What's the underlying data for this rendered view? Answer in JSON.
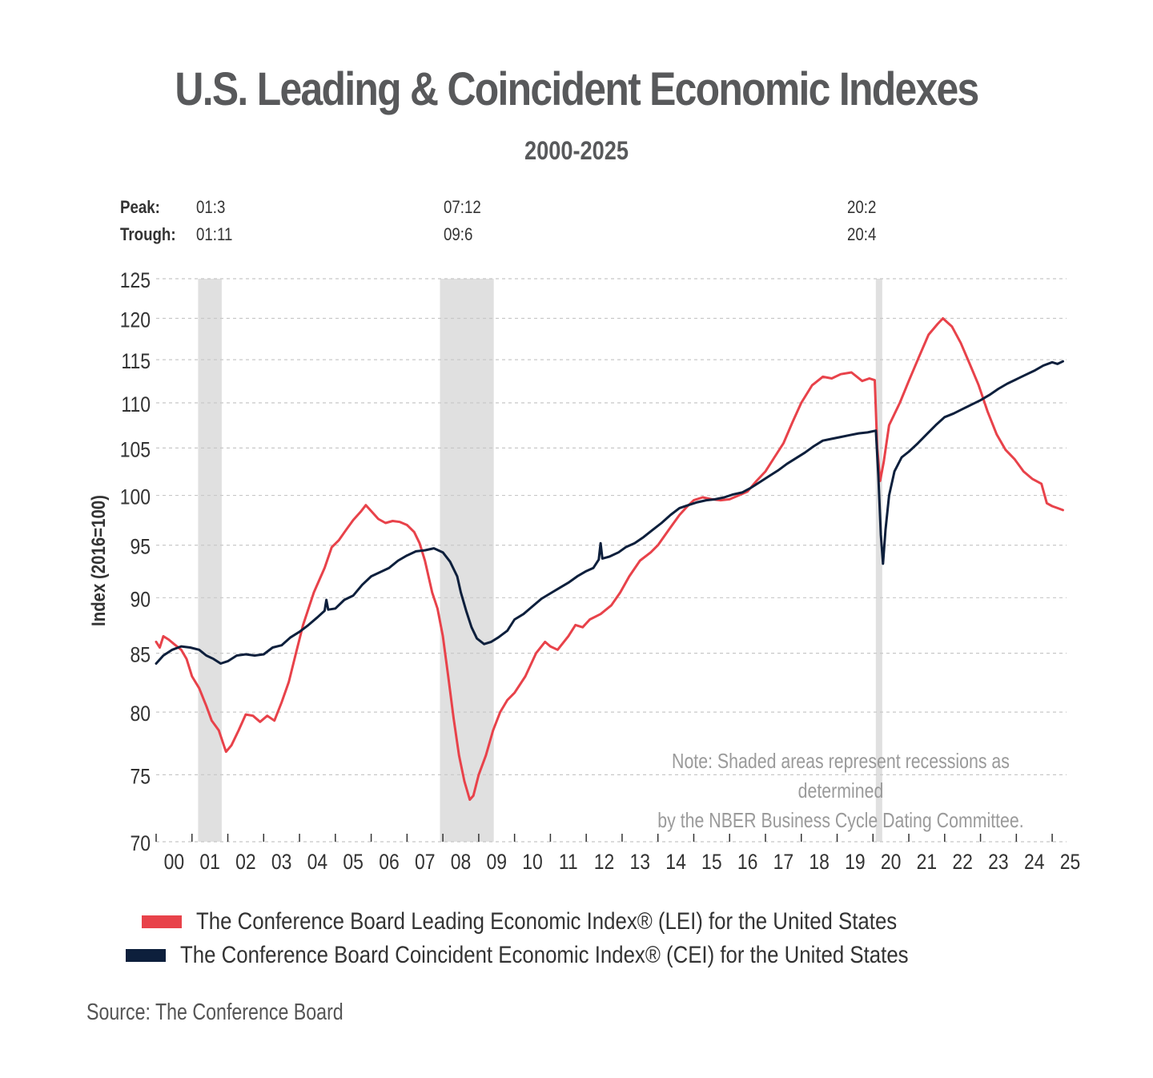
{
  "title": "U.S. Leading & Coincident Economic Indexes",
  "subtitle": "2000-2025",
  "cycles": {
    "peak_label": "Peak:",
    "trough_label": "Trough:",
    "recessions": [
      {
        "peak": "01:3",
        "trough": "01:11"
      },
      {
        "peak": "07:12",
        "trough": "09:6"
      },
      {
        "peak": "20:2",
        "trough": "20:4"
      }
    ]
  },
  "note_line1": "Note: Shaded areas represent recessions as determined",
  "note_line2": "by the NBER Business Cycle Dating Committee.",
  "source": "Source: The Conference Board",
  "colors": {
    "lei": "#e8424a",
    "cei": "#0d1f3c",
    "recession": "#e0e0e0",
    "grid": "#c8c8c8"
  },
  "chart_data": {
    "type": "line",
    "ylabel": "Index (2016=100)",
    "y_scale": "log",
    "ylim": [
      70,
      125
    ],
    "yticks": [
      70,
      75,
      80,
      85,
      90,
      95,
      100,
      105,
      110,
      115,
      120,
      125
    ],
    "xlim": [
      2000.0,
      2025.4
    ],
    "x_tick_labels": [
      "00",
      "01",
      "02",
      "03",
      "04",
      "05",
      "06",
      "07",
      "08",
      "09",
      "10",
      "11",
      "12",
      "13",
      "14",
      "15",
      "16",
      "17",
      "18",
      "19",
      "20",
      "21",
      "22",
      "23",
      "24",
      "25"
    ],
    "recession_shading": [
      [
        2001.17,
        2001.83
      ],
      [
        2007.92,
        2009.42
      ],
      [
        2020.08,
        2020.25
      ]
    ],
    "series": [
      {
        "name": "The Conference Board Leading Economic Index® (LEI) for the United States",
        "key": "lei",
        "points": [
          [
            2000.0,
            86.0
          ],
          [
            2000.1,
            85.5
          ],
          [
            2000.2,
            86.5
          ],
          [
            2000.35,
            86.2
          ],
          [
            2000.5,
            85.8
          ],
          [
            2000.7,
            85.3
          ],
          [
            2000.85,
            84.5
          ],
          [
            2001.0,
            83.0
          ],
          [
            2001.2,
            82.0
          ],
          [
            2001.4,
            80.5
          ],
          [
            2001.55,
            79.3
          ],
          [
            2001.75,
            78.5
          ],
          [
            2001.9,
            77.2
          ],
          [
            2001.95,
            76.8
          ],
          [
            2002.1,
            77.3
          ],
          [
            2002.3,
            78.5
          ],
          [
            2002.5,
            79.8
          ],
          [
            2002.7,
            79.7
          ],
          [
            2002.9,
            79.2
          ],
          [
            2003.1,
            79.7
          ],
          [
            2003.3,
            79.3
          ],
          [
            2003.5,
            80.8
          ],
          [
            2003.7,
            82.5
          ],
          [
            2003.9,
            85.0
          ],
          [
            2004.1,
            87.5
          ],
          [
            2004.4,
            90.5
          ],
          [
            2004.7,
            92.8
          ],
          [
            2004.9,
            94.8
          ],
          [
            2005.1,
            95.5
          ],
          [
            2005.3,
            96.5
          ],
          [
            2005.5,
            97.5
          ],
          [
            2005.7,
            98.3
          ],
          [
            2005.85,
            99.0
          ],
          [
            2006.0,
            98.4
          ],
          [
            2006.2,
            97.6
          ],
          [
            2006.4,
            97.2
          ],
          [
            2006.6,
            97.4
          ],
          [
            2006.8,
            97.3
          ],
          [
            2007.0,
            97.0
          ],
          [
            2007.2,
            96.3
          ],
          [
            2007.35,
            95.2
          ],
          [
            2007.5,
            93.5
          ],
          [
            2007.7,
            90.5
          ],
          [
            2007.85,
            89.0
          ],
          [
            2008.0,
            86.5
          ],
          [
            2008.15,
            83.0
          ],
          [
            2008.3,
            79.5
          ],
          [
            2008.45,
            76.5
          ],
          [
            2008.6,
            74.5
          ],
          [
            2008.75,
            73.1
          ],
          [
            2008.85,
            73.4
          ],
          [
            2009.0,
            75.0
          ],
          [
            2009.2,
            76.5
          ],
          [
            2009.4,
            78.5
          ],
          [
            2009.6,
            80.0
          ],
          [
            2009.8,
            81.0
          ],
          [
            2010.0,
            81.6
          ],
          [
            2010.3,
            83.0
          ],
          [
            2010.6,
            85.0
          ],
          [
            2010.85,
            86.0
          ],
          [
            2011.0,
            85.6
          ],
          [
            2011.2,
            85.3
          ],
          [
            2011.5,
            86.5
          ],
          [
            2011.7,
            87.5
          ],
          [
            2011.9,
            87.3
          ],
          [
            2012.1,
            88.0
          ],
          [
            2012.4,
            88.5
          ],
          [
            2012.7,
            89.3
          ],
          [
            2012.95,
            90.5
          ],
          [
            2013.2,
            92.0
          ],
          [
            2013.5,
            93.5
          ],
          [
            2013.8,
            94.3
          ],
          [
            2014.0,
            95.0
          ],
          [
            2014.3,
            96.5
          ],
          [
            2014.6,
            98.0
          ],
          [
            2014.8,
            98.8
          ],
          [
            2015.0,
            99.5
          ],
          [
            2015.25,
            99.8
          ],
          [
            2015.5,
            99.6
          ],
          [
            2015.75,
            99.5
          ],
          [
            2016.0,
            99.6
          ],
          [
            2016.25,
            100.0
          ],
          [
            2016.5,
            100.4
          ],
          [
            2016.75,
            101.5
          ],
          [
            2017.0,
            102.5
          ],
          [
            2017.25,
            104.0
          ],
          [
            2017.5,
            105.5
          ],
          [
            2017.75,
            107.8
          ],
          [
            2018.0,
            110.0
          ],
          [
            2018.3,
            112.0
          ],
          [
            2018.6,
            113.0
          ],
          [
            2018.85,
            112.8
          ],
          [
            2019.1,
            113.3
          ],
          [
            2019.4,
            113.5
          ],
          [
            2019.7,
            112.5
          ],
          [
            2019.9,
            112.8
          ],
          [
            2020.05,
            112.6
          ],
          [
            2020.12,
            105.0
          ],
          [
            2020.2,
            101.5
          ],
          [
            2020.3,
            103.5
          ],
          [
            2020.45,
            107.5
          ],
          [
            2020.75,
            110.0
          ],
          [
            2021.0,
            112.5
          ],
          [
            2021.3,
            115.5
          ],
          [
            2021.55,
            118.0
          ],
          [
            2021.8,
            119.3
          ],
          [
            2021.95,
            120.0
          ],
          [
            2022.2,
            119.0
          ],
          [
            2022.45,
            117.0
          ],
          [
            2022.7,
            114.5
          ],
          [
            2022.95,
            112.0
          ],
          [
            2023.2,
            109.0
          ],
          [
            2023.45,
            106.5
          ],
          [
            2023.7,
            104.8
          ],
          [
            2023.95,
            103.8
          ],
          [
            2024.2,
            102.5
          ],
          [
            2024.45,
            101.7
          ],
          [
            2024.7,
            101.2
          ],
          [
            2024.85,
            99.2
          ],
          [
            2025.0,
            98.9
          ],
          [
            2025.15,
            98.7
          ],
          [
            2025.3,
            98.5
          ]
        ]
      },
      {
        "name": "The Conference Board Coincident Economic Index® (CEI) for the United States",
        "key": "cei",
        "points": [
          [
            2000.0,
            84.1
          ],
          [
            2000.2,
            84.8
          ],
          [
            2000.45,
            85.3
          ],
          [
            2000.7,
            85.6
          ],
          [
            2000.95,
            85.5
          ],
          [
            2001.2,
            85.3
          ],
          [
            2001.4,
            84.8
          ],
          [
            2001.6,
            84.5
          ],
          [
            2001.8,
            84.1
          ],
          [
            2002.0,
            84.3
          ],
          [
            2002.25,
            84.8
          ],
          [
            2002.5,
            84.9
          ],
          [
            2002.75,
            84.8
          ],
          [
            2003.0,
            84.9
          ],
          [
            2003.25,
            85.5
          ],
          [
            2003.5,
            85.7
          ],
          [
            2003.75,
            86.4
          ],
          [
            2004.0,
            86.9
          ],
          [
            2004.25,
            87.5
          ],
          [
            2004.5,
            88.2
          ],
          [
            2004.7,
            88.8
          ],
          [
            2004.75,
            89.8
          ],
          [
            2004.8,
            88.9
          ],
          [
            2005.0,
            89.0
          ],
          [
            2005.25,
            89.8
          ],
          [
            2005.5,
            90.2
          ],
          [
            2005.75,
            91.2
          ],
          [
            2006.0,
            92.0
          ],
          [
            2006.25,
            92.4
          ],
          [
            2006.5,
            92.8
          ],
          [
            2006.75,
            93.5
          ],
          [
            2007.0,
            94.0
          ],
          [
            2007.25,
            94.4
          ],
          [
            2007.5,
            94.5
          ],
          [
            2007.75,
            94.7
          ],
          [
            2008.0,
            94.3
          ],
          [
            2008.2,
            93.4
          ],
          [
            2008.4,
            92.0
          ],
          [
            2008.5,
            90.5
          ],
          [
            2008.65,
            88.8
          ],
          [
            2008.8,
            87.3
          ],
          [
            2008.95,
            86.3
          ],
          [
            2009.15,
            85.8
          ],
          [
            2009.35,
            86.0
          ],
          [
            2009.55,
            86.4
          ],
          [
            2009.8,
            87.0
          ],
          [
            2010.0,
            88.0
          ],
          [
            2010.25,
            88.5
          ],
          [
            2010.5,
            89.2
          ],
          [
            2010.75,
            89.9
          ],
          [
            2011.0,
            90.4
          ],
          [
            2011.25,
            90.9
          ],
          [
            2011.5,
            91.4
          ],
          [
            2011.75,
            92.0
          ],
          [
            2012.0,
            92.5
          ],
          [
            2012.2,
            92.8
          ],
          [
            2012.35,
            93.6
          ],
          [
            2012.4,
            95.2
          ],
          [
            2012.45,
            93.7
          ],
          [
            2012.65,
            93.9
          ],
          [
            2012.9,
            94.3
          ],
          [
            2013.1,
            94.8
          ],
          [
            2013.35,
            95.2
          ],
          [
            2013.6,
            95.8
          ],
          [
            2013.85,
            96.5
          ],
          [
            2014.1,
            97.2
          ],
          [
            2014.35,
            98.0
          ],
          [
            2014.6,
            98.7
          ],
          [
            2014.85,
            99.0
          ],
          [
            2015.1,
            99.3
          ],
          [
            2015.35,
            99.5
          ],
          [
            2015.6,
            99.6
          ],
          [
            2015.85,
            99.8
          ],
          [
            2016.1,
            100.1
          ],
          [
            2016.35,
            100.3
          ],
          [
            2016.6,
            100.8
          ],
          [
            2016.85,
            101.4
          ],
          [
            2017.1,
            102.0
          ],
          [
            2017.35,
            102.6
          ],
          [
            2017.6,
            103.3
          ],
          [
            2017.85,
            103.9
          ],
          [
            2018.1,
            104.5
          ],
          [
            2018.35,
            105.2
          ],
          [
            2018.6,
            105.8
          ],
          [
            2018.85,
            106.0
          ],
          [
            2019.1,
            106.2
          ],
          [
            2019.35,
            106.4
          ],
          [
            2019.6,
            106.6
          ],
          [
            2019.85,
            106.7
          ],
          [
            2020.08,
            106.9
          ],
          [
            2020.15,
            102.0
          ],
          [
            2020.22,
            96.0
          ],
          [
            2020.28,
            93.2
          ],
          [
            2020.35,
            96.5
          ],
          [
            2020.45,
            100.0
          ],
          [
            2020.6,
            102.5
          ],
          [
            2020.8,
            104.0
          ],
          [
            2021.0,
            104.6
          ],
          [
            2021.25,
            105.5
          ],
          [
            2021.5,
            106.5
          ],
          [
            2021.75,
            107.5
          ],
          [
            2022.0,
            108.4
          ],
          [
            2022.25,
            108.8
          ],
          [
            2022.5,
            109.3
          ],
          [
            2022.75,
            109.8
          ],
          [
            2023.0,
            110.3
          ],
          [
            2023.25,
            110.9
          ],
          [
            2023.5,
            111.6
          ],
          [
            2023.75,
            112.2
          ],
          [
            2024.0,
            112.7
          ],
          [
            2024.25,
            113.2
          ],
          [
            2024.5,
            113.7
          ],
          [
            2024.75,
            114.3
          ],
          [
            2025.0,
            114.7
          ],
          [
            2025.15,
            114.5
          ],
          [
            2025.3,
            114.8
          ]
        ]
      }
    ]
  }
}
